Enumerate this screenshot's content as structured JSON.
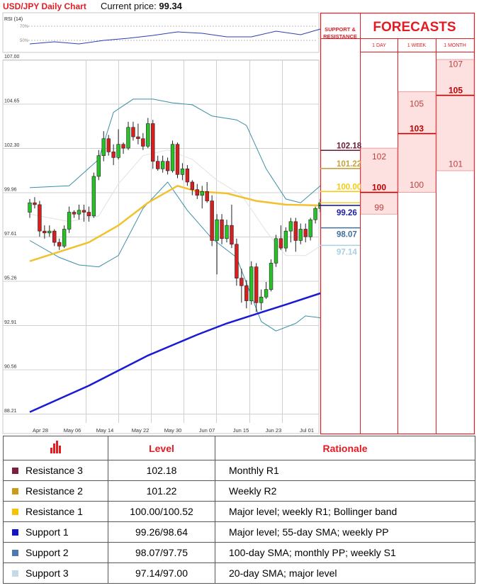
{
  "header": {
    "title": "USD/JPY Daily Chart",
    "price_label": "Current price:",
    "price_value": "99.34",
    "rsi_label": "RSI (14)",
    "rsi_ticks": [
      "70%",
      "50%"
    ]
  },
  "forecast_panel": {
    "title": "FORECASTS",
    "sr_header": "SUPPORT & RESISTANCE",
    "col_labels": [
      "1 DAY",
      "1 WEEK",
      "1 MONTH"
    ],
    "levels": [
      {
        "label": "102.18",
        "color": "#6b1a36",
        "value": 102.18
      },
      {
        "label": "101.22",
        "color": "#c9a13a",
        "value": 101.22
      },
      {
        "label": "100.00",
        "color": "#f2cc18",
        "value": 100.0
      },
      {
        "label": "99.26",
        "color": "#1b1fa5",
        "value": 99.26
      },
      {
        "label": "98.07",
        "color": "#3f6f9d",
        "value": 98.07
      },
      {
        "label": "97.14",
        "color": "#a9cfe0",
        "value": 97.14
      }
    ],
    "one_day": {
      "high": "102",
      "mid": "100",
      "low": "99"
    },
    "one_week": {
      "high": "105",
      "mid": "103",
      "low": "100"
    },
    "one_month": {
      "high": "107",
      "mid": "105",
      "low": "101"
    }
  },
  "table": {
    "col_level": "Level",
    "col_rationale": "Rationale",
    "rows": [
      {
        "name": "Resistance 3",
        "level": "102.18",
        "rationale": "Monthly R1",
        "color": "#7a1f3d"
      },
      {
        "name": "Resistance 2",
        "level": "101.22",
        "rationale": "Weekly R2",
        "color": "#c99a1c"
      },
      {
        "name": "Resistance 1",
        "level": "100.00/100.52",
        "rationale": "Major level; weekly R1; Bollinger band",
        "color": "#f5c400"
      },
      {
        "name": "Support 1",
        "level": "99.26/98.64",
        "rationale": "Major level; 55-day SMA; weekly PP",
        "color": "#1515c8"
      },
      {
        "name": "Support 2",
        "level": "98.07/97.75",
        "rationale": "100-day SMA; monthly PP; weekly S1",
        "color": "#4a7ab0"
      },
      {
        "name": "Support 3",
        "level": "97.14/97.00",
        "rationale": "20-day SMA; major level",
        "color": "#c5d9e8"
      }
    ]
  },
  "chart_data": {
    "type": "candlestick",
    "title": "USD/JPY Daily Chart",
    "ylim": [
      88.21,
      107.0
    ],
    "y_ticks": [
      "107.00",
      "104.65",
      "102.30",
      "99.96",
      "97.61",
      "95.26",
      "92.91",
      "90.56",
      "88.21"
    ],
    "x_ticks": [
      "Apr 28",
      "May 06",
      "May 14",
      "May 22",
      "May 30",
      "Jun 07",
      "Jun 15",
      "Jun 23",
      "Jul 01"
    ],
    "candles": [
      [
        98.9,
        99.6,
        98.6,
        99.4
      ],
      [
        99.4,
        99.7,
        99.1,
        99.3
      ],
      [
        99.3,
        99.5,
        97.6,
        97.9
      ],
      [
        97.9,
        98.2,
        97.5,
        97.8
      ],
      [
        97.8,
        98.2,
        97.6,
        97.9
      ],
      [
        97.9,
        98.0,
        97.1,
        97.3
      ],
      [
        97.3,
        97.5,
        96.9,
        97.1
      ],
      [
        97.1,
        98.2,
        97.0,
        98.0
      ],
      [
        98.0,
        99.2,
        97.8,
        98.9
      ],
      [
        98.9,
        99.0,
        98.6,
        98.8
      ],
      [
        98.8,
        99.3,
        98.5,
        99.0
      ],
      [
        99.0,
        99.3,
        98.4,
        98.9
      ],
      [
        98.9,
        99.2,
        98.4,
        98.7
      ],
      [
        98.7,
        101.0,
        98.6,
        100.8
      ],
      [
        100.8,
        102.2,
        100.6,
        101.9
      ],
      [
        101.9,
        103.2,
        101.6,
        102.8
      ],
      [
        102.8,
        103.0,
        101.9,
        102.1
      ],
      [
        102.1,
        102.5,
        101.4,
        101.8
      ],
      [
        101.8,
        103.3,
        101.7,
        102.5
      ],
      [
        102.5,
        102.6,
        102.0,
        102.3
      ],
      [
        102.3,
        103.7,
        102.2,
        103.4
      ],
      [
        103.4,
        103.7,
        102.7,
        102.9
      ],
      [
        102.9,
        103.6,
        102.5,
        102.8
      ],
      [
        102.8,
        103.1,
        102.2,
        102.4
      ],
      [
        102.4,
        103.9,
        102.3,
        103.6
      ],
      [
        103.6,
        103.8,
        101.2,
        101.6
      ],
      [
        101.6,
        101.9,
        101.1,
        101.2
      ],
      [
        101.2,
        101.9,
        101.0,
        101.6
      ],
      [
        101.6,
        101.8,
        100.9,
        101.1
      ],
      [
        101.1,
        102.7,
        101.0,
        102.5
      ],
      [
        102.5,
        102.6,
        100.7,
        100.9
      ],
      [
        100.9,
        101.5,
        100.6,
        101.2
      ],
      [
        101.2,
        101.4,
        100.3,
        100.5
      ],
      [
        100.5,
        100.6,
        99.8,
        100.1
      ],
      [
        100.1,
        100.4,
        99.6,
        99.8
      ],
      [
        99.8,
        100.3,
        99.1,
        100.0
      ],
      [
        100.0,
        100.5,
        99.4,
        99.5
      ],
      [
        99.5,
        99.8,
        97.1,
        97.4
      ],
      [
        97.4,
        98.8,
        95.6,
        98.5
      ],
      [
        98.5,
        98.8,
        97.2,
        97.5
      ],
      [
        97.5,
        98.5,
        97.3,
        98.2
      ],
      [
        98.2,
        99.3,
        97.0,
        97.2
      ],
      [
        97.2,
        97.5,
        95.0,
        95.4
      ],
      [
        95.4,
        95.9,
        94.1,
        95.0
      ],
      [
        95.0,
        95.3,
        93.8,
        94.2
      ],
      [
        94.2,
        96.3,
        94.0,
        96.0
      ],
      [
        96.0,
        96.2,
        93.6,
        94.1
      ],
      [
        94.1,
        94.8,
        93.7,
        94.4
      ],
      [
        94.4,
        95.2,
        94.3,
        94.8
      ],
      [
        94.8,
        96.4,
        94.7,
        96.2
      ],
      [
        96.2,
        97.7,
        96.0,
        97.5
      ],
      [
        97.5,
        98.2,
        96.9,
        97.0
      ],
      [
        97.0,
        98.1,
        96.8,
        97.9
      ],
      [
        97.9,
        98.6,
        97.3,
        98.4
      ],
      [
        98.4,
        98.6,
        96.8,
        97.4
      ],
      [
        97.4,
        98.3,
        97.2,
        98.0
      ],
      [
        98.0,
        98.3,
        97.3,
        97.6
      ],
      [
        97.6,
        98.6,
        97.4,
        98.5
      ],
      [
        98.5,
        99.2,
        98.3,
        99.1
      ],
      [
        99.1,
        99.6,
        98.9,
        99.4
      ]
    ],
    "sma_yellow": [
      [
        0,
        96.3
      ],
      [
        6,
        96.8
      ],
      [
        12,
        97.3
      ],
      [
        18,
        98.2
      ],
      [
        24,
        99.4
      ],
      [
        30,
        100.3
      ],
      [
        34,
        100.0
      ],
      [
        40,
        99.9
      ],
      [
        46,
        99.5
      ],
      [
        52,
        99.3
      ],
      [
        59,
        99.26
      ]
    ],
    "sma_blue": [
      [
        0,
        88.3
      ],
      [
        12,
        89.7
      ],
      [
        24,
        91.3
      ],
      [
        34,
        92.4
      ],
      [
        40,
        93.0
      ],
      [
        46,
        93.5
      ],
      [
        52,
        94.0
      ],
      [
        59,
        94.6
      ]
    ],
    "bb_upper": [
      [
        0,
        100.2
      ],
      [
        8,
        100.3
      ],
      [
        14,
        101.7
      ],
      [
        17,
        104.2
      ],
      [
        21,
        104.9
      ],
      [
        25,
        104.9
      ],
      [
        29,
        104.7
      ],
      [
        33,
        104.6
      ],
      [
        37,
        104.0
      ],
      [
        42,
        103.8
      ],
      [
        44,
        103.5
      ],
      [
        48,
        101.2
      ],
      [
        52,
        99.6
      ],
      [
        55,
        99.4
      ],
      [
        59,
        100.3
      ]
    ],
    "bb_lower": [
      [
        0,
        97.4
      ],
      [
        6,
        96.5
      ],
      [
        10,
        96.1
      ],
      [
        14,
        96.0
      ],
      [
        18,
        96.6
      ],
      [
        23,
        99.1
      ],
      [
        28,
        100.5
      ],
      [
        32,
        99.0
      ],
      [
        37,
        97.5
      ],
      [
        42,
        96.5
      ],
      [
        47,
        93.1
      ],
      [
        50,
        92.6
      ],
      [
        54,
        93.0
      ],
      [
        56,
        93.4
      ],
      [
        59,
        93.3
      ]
    ],
    "bb_mid": [
      [
        0,
        98.8
      ],
      [
        8,
        98.4
      ],
      [
        14,
        98.7
      ],
      [
        18,
        100.4
      ],
      [
        23,
        101.9
      ],
      [
        28,
        102.2
      ],
      [
        33,
        101.7
      ],
      [
        38,
        100.6
      ],
      [
        43,
        99.8
      ],
      [
        48,
        97.9
      ],
      [
        52,
        96.6
      ],
      [
        56,
        96.6
      ],
      [
        59,
        97.1
      ]
    ],
    "rsi": [
      [
        0,
        45
      ],
      [
        5,
        48
      ],
      [
        10,
        45
      ],
      [
        15,
        50
      ],
      [
        20,
        53
      ],
      [
        25,
        57
      ],
      [
        30,
        62
      ],
      [
        35,
        60
      ],
      [
        40,
        55
      ],
      [
        45,
        55
      ],
      [
        50,
        63
      ],
      [
        55,
        58
      ],
      [
        59,
        66
      ]
    ]
  }
}
